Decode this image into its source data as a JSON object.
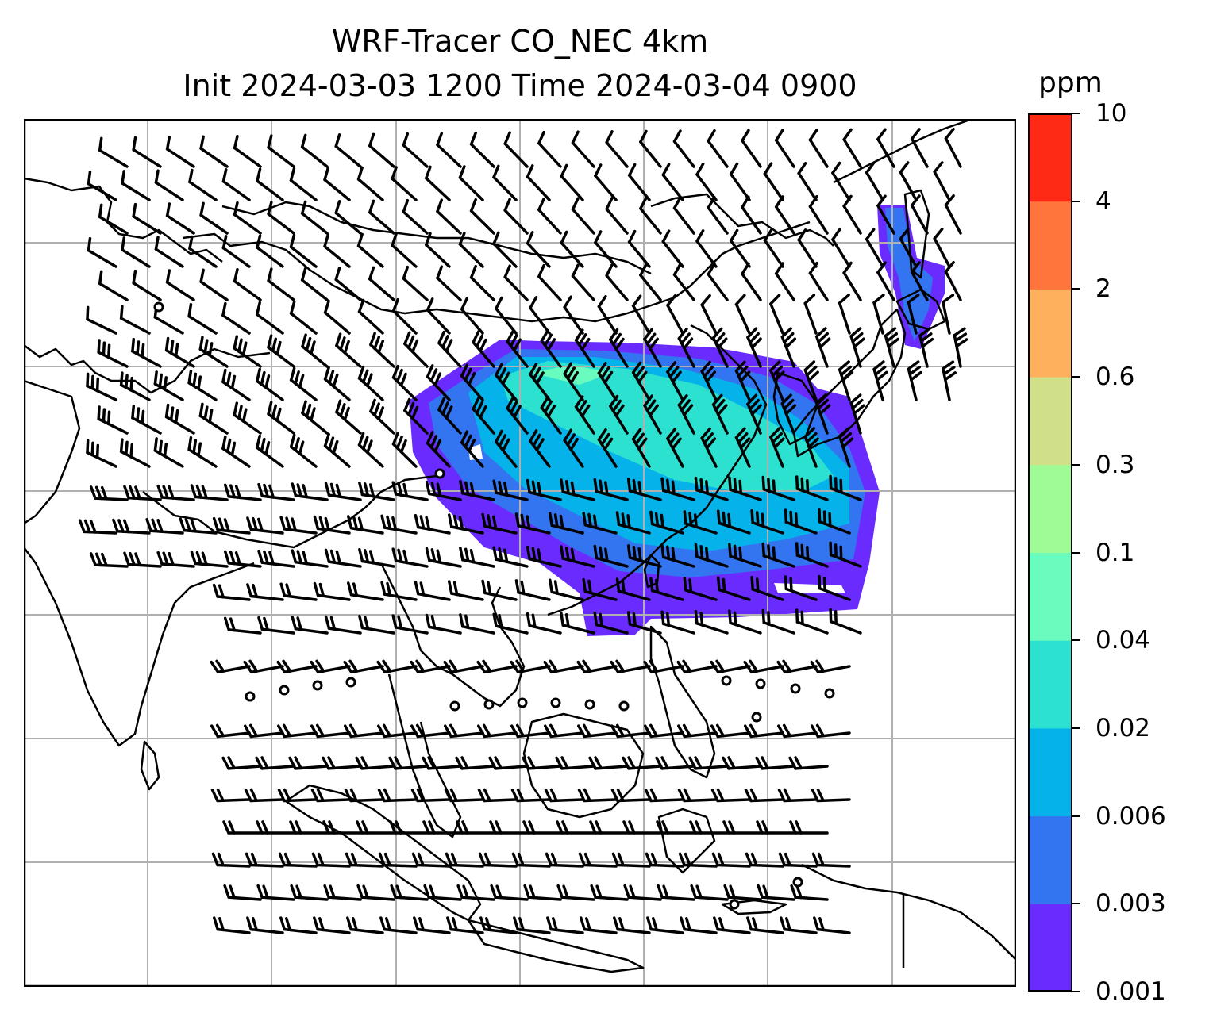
{
  "title": {
    "line1": "WRF-Tracer CO_NEC 4km",
    "line2": "Init 2024-03-03 1200 Time 2024-03-04 0900"
  },
  "colorbar": {
    "unit": "ppm",
    "levels": [
      "0.001",
      "0.003",
      "0.006",
      "0.02",
      "0.04",
      "0.1",
      "0.3",
      "0.6",
      "2",
      "4",
      "10"
    ],
    "colors": [
      "#6a2bff",
      "#3375f0",
      "#05b2e9",
      "#2de1d0",
      "#6afcbf",
      "#9efb95",
      "#d0e089",
      "#feb05c",
      "#ff753b",
      "#ff2a15"
    ]
  },
  "map": {
    "gridlines": true,
    "field": "CO tracer concentration with wind barbs",
    "calm_markers": true,
    "plume_colors": {
      "outer": "#6a2bff",
      "mid": "#3375f0",
      "inner": "#05b2e9",
      "core": "#2de1d0",
      "peak": "#6afcbf"
    },
    "coast_color": "#000000",
    "grid_color": "#b0b0b0"
  }
}
